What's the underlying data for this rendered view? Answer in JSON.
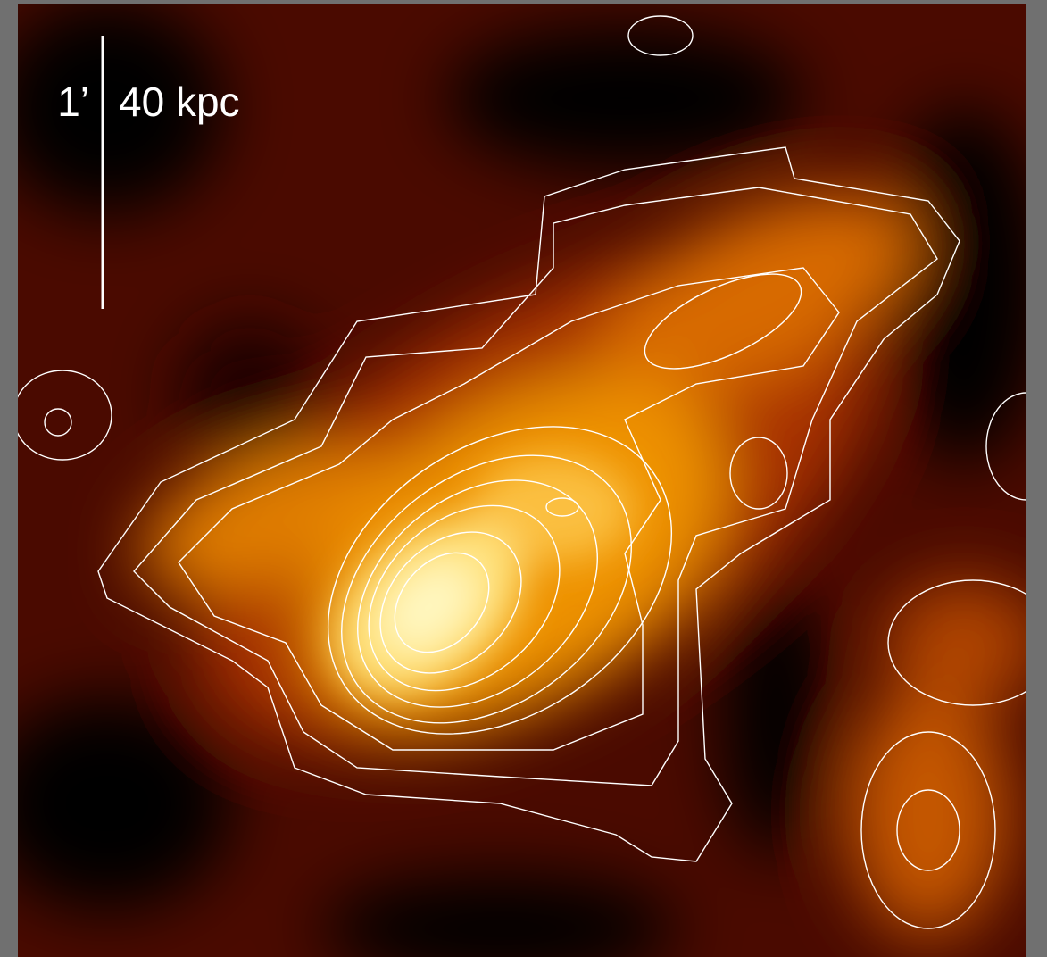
{
  "scale_bar": {
    "angular": "1’",
    "physical": "40 kpc"
  }
}
